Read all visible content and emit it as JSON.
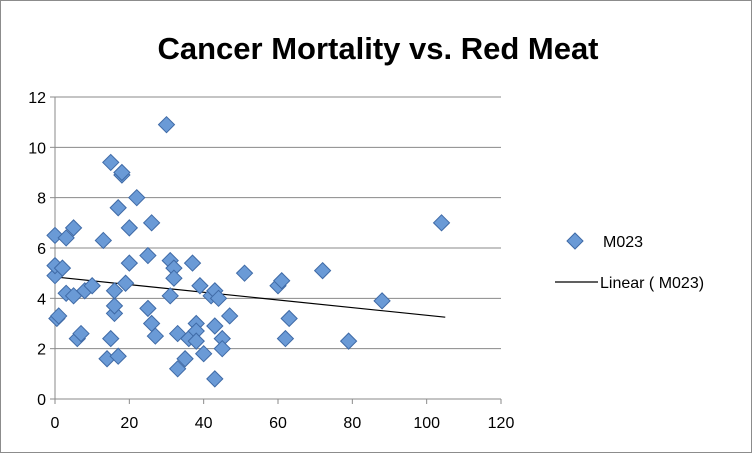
{
  "chart_data": {
    "type": "scatter",
    "title": "Cancer Mortality vs. Red Meat",
    "xlabel": "",
    "ylabel": "",
    "xlim": [
      0,
      120
    ],
    "ylim": [
      0,
      12
    ],
    "x_ticks": [
      0,
      20,
      40,
      60,
      80,
      100,
      120
    ],
    "y_ticks": [
      0,
      2,
      4,
      6,
      8,
      10,
      12
    ],
    "grid": "horizontal major gridlines",
    "legend_position": "right",
    "series": [
      {
        "name": "M023",
        "marker": "diamond",
        "color": "#6a9ad6",
        "edge_color": "#3f6aa6",
        "points": [
          [
            0,
            4.9
          ],
          [
            0,
            5.3
          ],
          [
            0,
            6.5
          ],
          [
            0.5,
            3.2
          ],
          [
            1,
            3.3
          ],
          [
            2,
            5.2
          ],
          [
            3,
            6.4
          ],
          [
            3,
            4.2
          ],
          [
            5,
            6.8
          ],
          [
            5,
            4.1
          ],
          [
            6,
            2.4
          ],
          [
            7,
            2.6
          ],
          [
            8,
            4.3
          ],
          [
            10,
            4.5
          ],
          [
            13,
            6.3
          ],
          [
            14,
            1.6
          ],
          [
            15,
            9.4
          ],
          [
            15,
            2.4
          ],
          [
            16,
            3.4
          ],
          [
            16,
            3.7
          ],
          [
            16,
            4.3
          ],
          [
            17,
            1.7
          ],
          [
            17,
            7.6
          ],
          [
            18,
            8.9
          ],
          [
            18,
            9.0
          ],
          [
            19,
            4.6
          ],
          [
            20,
            6.8
          ],
          [
            20,
            5.4
          ],
          [
            22,
            8.0
          ],
          [
            25,
            3.6
          ],
          [
            25,
            5.7
          ],
          [
            26,
            3.0
          ],
          [
            26,
            7.0
          ],
          [
            27,
            2.5
          ],
          [
            30,
            10.9
          ],
          [
            31,
            5.5
          ],
          [
            31,
            4.1
          ],
          [
            32,
            5.2
          ],
          [
            32,
            4.8
          ],
          [
            33,
            2.6
          ],
          [
            33,
            1.2
          ],
          [
            35,
            1.6
          ],
          [
            36,
            2.4
          ],
          [
            37,
            5.4
          ],
          [
            38,
            3.0
          ],
          [
            38,
            2.7
          ],
          [
            38,
            2.3
          ],
          [
            39,
            4.5
          ],
          [
            40,
            1.8
          ],
          [
            42,
            4.1
          ],
          [
            43,
            4.3
          ],
          [
            43,
            2.9
          ],
          [
            43,
            0.8
          ],
          [
            44,
            4.0
          ],
          [
            45,
            2.4
          ],
          [
            45,
            2.0
          ],
          [
            47,
            3.3
          ],
          [
            51,
            5.0
          ],
          [
            60,
            4.5
          ],
          [
            61,
            4.7
          ],
          [
            62,
            2.4
          ],
          [
            63,
            3.2
          ],
          [
            72,
            5.1
          ],
          [
            79,
            2.3
          ],
          [
            88,
            3.9
          ],
          [
            104,
            7.0
          ]
        ]
      }
    ],
    "trendline": {
      "name": "Linear ( M023)",
      "type": "linear",
      "color": "#000000",
      "x_range": [
        0,
        105
      ],
      "y_values": [
        4.85,
        3.25
      ]
    }
  }
}
